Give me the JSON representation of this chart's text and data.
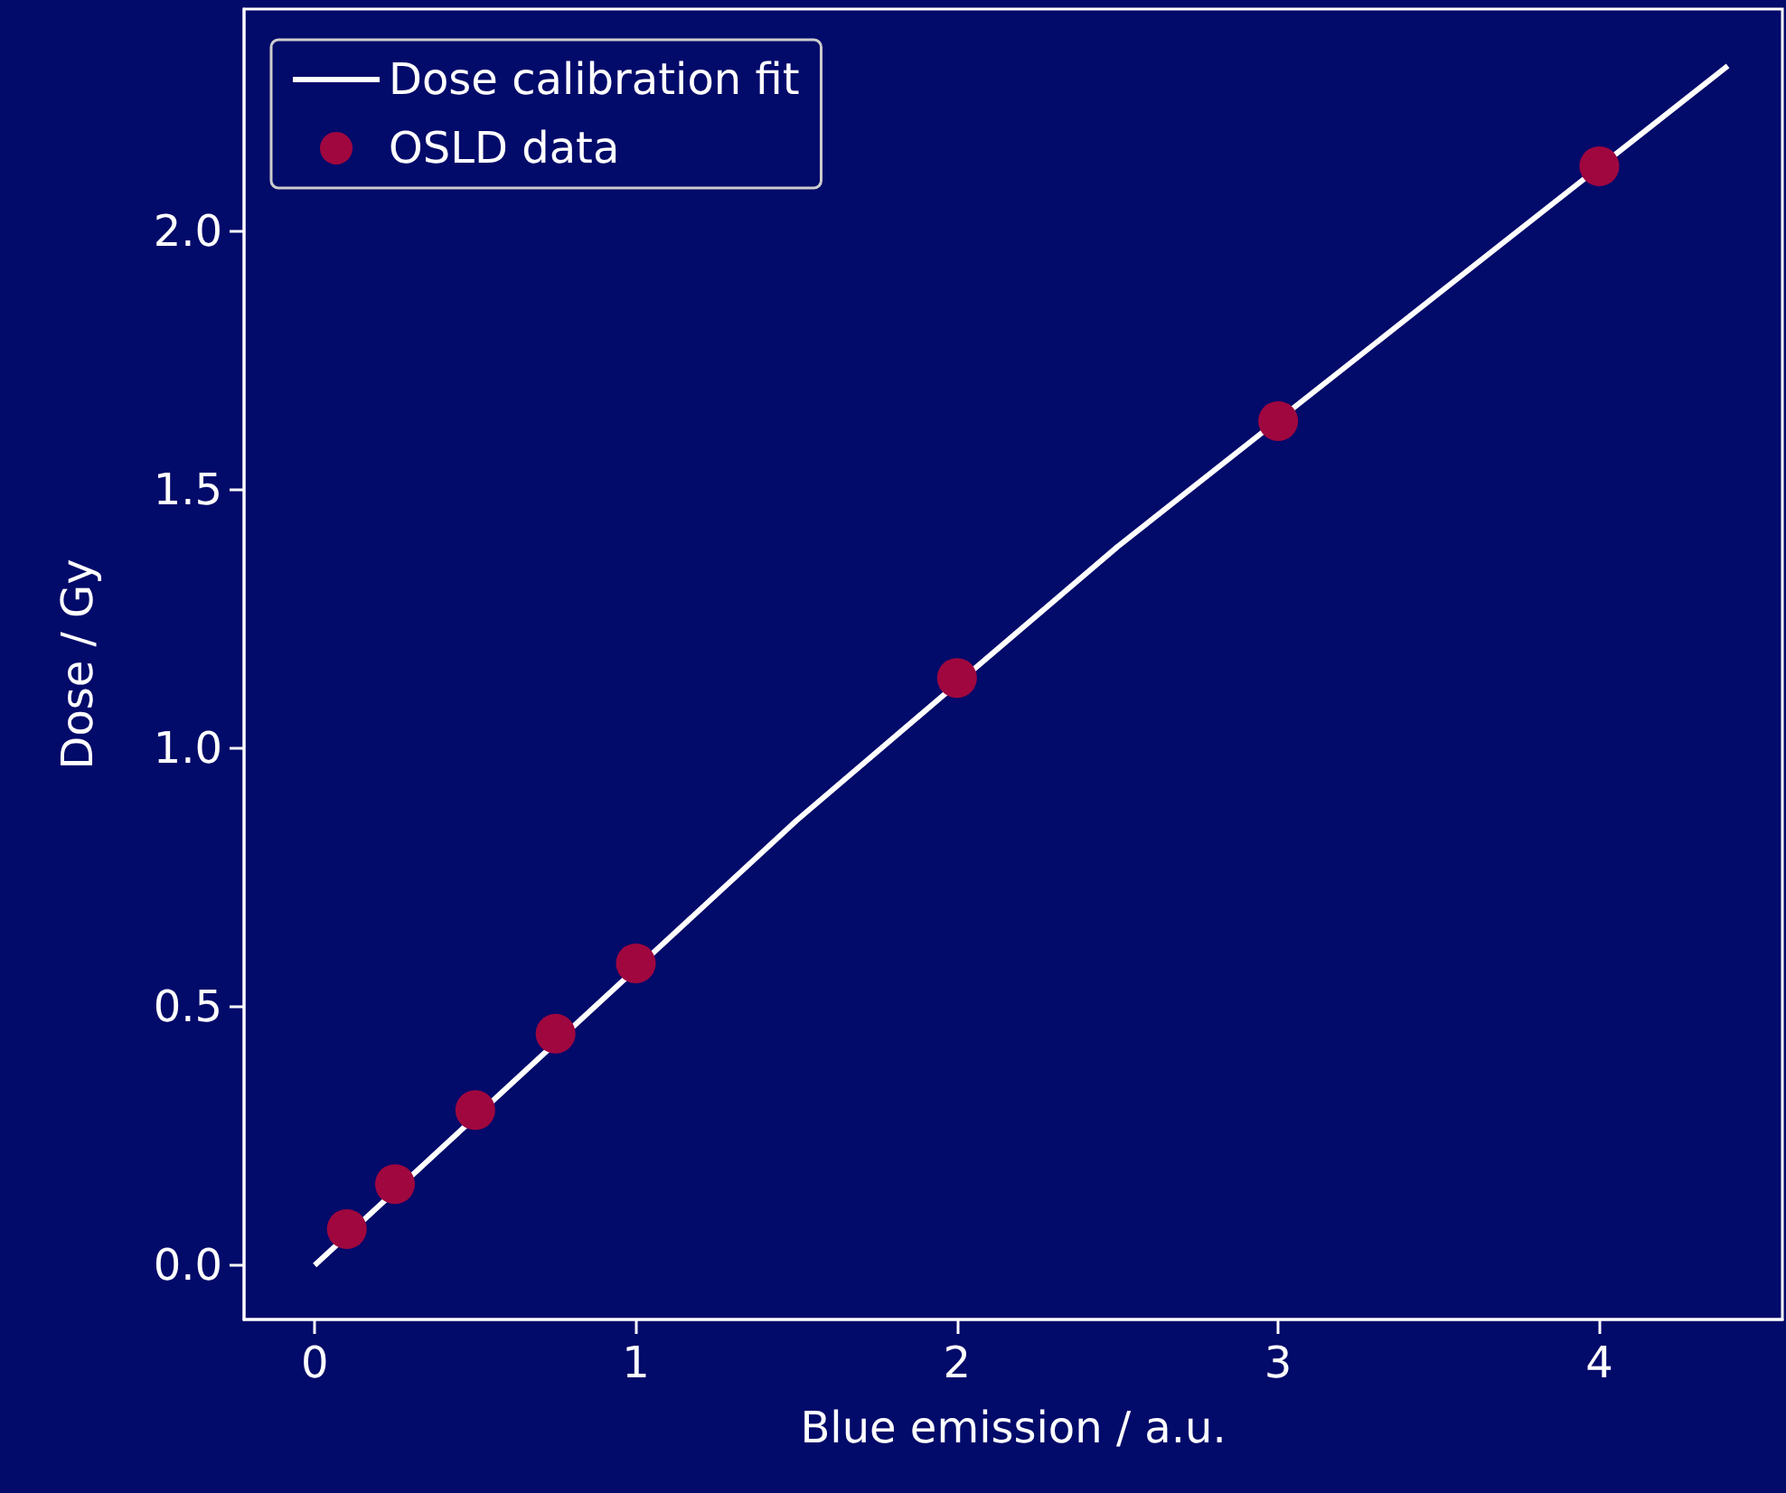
{
  "chart_data": {
    "type": "scatter",
    "xlabel": "Blue emission / a.u.",
    "ylabel": "Dose / Gy",
    "xlim": [
      -0.22,
      4.57
    ],
    "ylim": [
      -0.105,
      2.43
    ],
    "xticks": [
      0,
      1,
      2,
      3,
      4
    ],
    "yticks": [
      {
        "value": 0,
        "label": "0.0"
      },
      {
        "value": 0.5,
        "label": "0.5"
      },
      {
        "value": 1,
        "label": "1.0"
      },
      {
        "value": 1.5,
        "label": "1.5"
      },
      {
        "value": 2,
        "label": "2.0"
      }
    ],
    "series": [
      {
        "name": "Dose calibration fit",
        "type": "line",
        "color": "#ffffff",
        "marker": "none",
        "line_style": "solid",
        "x": [
          0,
          1.5,
          2.5,
          3.5,
          4.4
        ],
        "values": [
          0,
          0.86,
          1.39,
          1.88,
          2.32
        ]
      },
      {
        "name": "OSLD data",
        "color": "#a0073f",
        "marker": "circle",
        "x": [
          0.1,
          0.25,
          0.5,
          0.75,
          1,
          2,
          3,
          4
        ],
        "values": [
          0.07,
          0.157,
          0.3,
          0.448,
          0.584,
          1.136,
          1.633,
          2.126
        ]
      }
    ],
    "grid": false,
    "legend": "top left"
  }
}
